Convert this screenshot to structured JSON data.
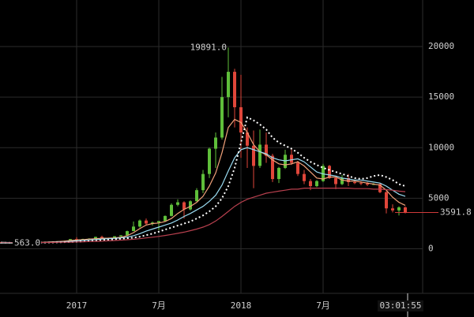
{
  "chart_data": {
    "type": "candlestick",
    "categories": [
      null,
      null,
      null,
      null,
      null,
      null,
      null,
      null,
      null,
      null,
      null,
      null,
      "2017",
      null,
      null,
      null,
      null,
      null,
      null,
      null,
      null,
      null,
      null,
      null,
      null,
      "7月",
      null,
      null,
      null,
      null,
      null,
      null,
      null,
      null,
      null,
      null,
      null,
      null,
      "2018",
      null,
      null,
      null,
      null,
      null,
      null,
      null,
      null,
      null,
      null,
      null,
      null,
      "7月",
      null,
      null,
      null,
      null,
      null,
      null,
      null,
      null,
      null,
      null,
      null,
      null,
      null
    ],
    "open": [
      660,
      655,
      575,
      590,
      600,
      610,
      630,
      640,
      700,
      720,
      750,
      790,
      960,
      900,
      980,
      1020,
      1180,
      1050,
      1060,
      1240,
      1340,
      1750,
      2200,
      2800,
      2500,
      2600,
      2750,
      3250,
      4350,
      4600,
      3900,
      4700,
      5800,
      7400,
      9900,
      11000,
      15000,
      17500,
      14000,
      11500,
      10200,
      8200,
      10300,
      9200,
      6900,
      8000,
      9300,
      8500,
      7400,
      6700,
      6200,
      6700,
      8200,
      7000,
      6400,
      7000,
      6600,
      6500,
      6450,
      6350,
      6400,
      5600,
      4000,
      3800,
      4100
    ],
    "high": [
      680,
      660,
      600,
      610,
      615,
      640,
      650,
      720,
      740,
      760,
      800,
      980,
      1150,
      1000,
      1050,
      1200,
      1300,
      1100,
      1250,
      1350,
      1800,
      2700,
      2900,
      3000,
      2700,
      2700,
      3300,
      4500,
      4900,
      4700,
      4800,
      6000,
      7800,
      10000,
      11500,
      17000,
      19891,
      17800,
      17200,
      12000,
      11700,
      11800,
      11500,
      9400,
      8100,
      9800,
      9900,
      8700,
      7800,
      6900,
      6800,
      8400,
      8300,
      7100,
      7300,
      7400,
      6800,
      6700,
      6600,
      6500,
      6500,
      5700,
      4400,
      4200,
      4200
    ],
    "low": [
      640,
      563,
      565,
      570,
      590,
      600,
      620,
      635,
      680,
      700,
      740,
      780,
      780,
      880,
      940,
      1000,
      950,
      900,
      1050,
      1200,
      1330,
      1750,
      2100,
      2300,
      2300,
      1850,
      2700,
      3200,
      4200,
      3000,
      3800,
      4700,
      5500,
      7000,
      8000,
      10800,
      13000,
      12000,
      9000,
      8000,
      6000,
      8000,
      8500,
      6600,
      6500,
      7900,
      8300,
      7200,
      6400,
      5800,
      6100,
      6600,
      6900,
      5900,
      6300,
      6200,
      6400,
      6300,
      6200,
      6300,
      5500,
      3500,
      3600,
      3300,
      3500
    ],
    "close": [
      655,
      575,
      590,
      600,
      610,
      630,
      640,
      700,
      720,
      750,
      790,
      960,
      900,
      980,
      1020,
      1180,
      1050,
      1060,
      1240,
      1340,
      1750,
      2200,
      2800,
      2500,
      2600,
      2750,
      3250,
      4350,
      4600,
      3900,
      4700,
      5800,
      7400,
      9900,
      11000,
      15000,
      17500,
      14000,
      11500,
      10200,
      8200,
      10300,
      9200,
      6900,
      8000,
      9300,
      8500,
      7400,
      6700,
      6200,
      6700,
      8200,
      7000,
      6400,
      7000,
      6600,
      6500,
      6450,
      6350,
      6400,
      5600,
      4000,
      3800,
      4100,
      3591.8
    ],
    "up_color": "#5fbf3a",
    "down_color": "#e0463a",
    "lines": [
      {
        "color": "#f2a27a",
        "dashed": false,
        "values": [
          650,
          620,
          600,
          595,
          600,
          615,
          630,
          660,
          690,
          720,
          750,
          820,
          880,
          920,
          960,
          1000,
          1050,
          1060,
          1080,
          1150,
          1300,
          1600,
          2000,
          2350,
          2500,
          2550,
          2700,
          3000,
          3500,
          3900,
          4200,
          4600,
          5200,
          6200,
          7500,
          9500,
          12000,
          12800,
          12500,
          11500,
          10300,
          9600,
          9300,
          8800,
          8400,
          8300,
          8400,
          8600,
          8200,
          7600,
          7000,
          6900,
          7100,
          7100,
          6800,
          6700,
          6700,
          6600,
          6500,
          6400,
          6300,
          5800,
          5100,
          4600,
          4300
        ]
      },
      {
        "color": "#9adcf2",
        "dashed": false,
        "values": [
          640,
          630,
          615,
          605,
          600,
          605,
          615,
          630,
          650,
          675,
          700,
          740,
          790,
          840,
          880,
          920,
          960,
          1000,
          1030,
          1080,
          1160,
          1300,
          1500,
          1750,
          1950,
          2150,
          2350,
          2550,
          2850,
          3200,
          3500,
          3850,
          4200,
          4700,
          5300,
          6300,
          7700,
          9000,
          9800,
          10000,
          9800,
          9600,
          9400,
          9000,
          8800,
          8700,
          8800,
          8900,
          8600,
          8100,
          7600,
          7400,
          7300,
          7200,
          7000,
          6900,
          6800,
          6800,
          6700,
          6600,
          6500,
          6200,
          5800,
          5400,
          5200
        ]
      },
      {
        "color": "#ffffff",
        "dashed": true,
        "values": [
          600,
          600,
          600,
          600,
          600,
          600,
          610,
          620,
          630,
          640,
          660,
          680,
          700,
          730,
          770,
          810,
          850,
          900,
          950,
          1000,
          1050,
          1100,
          1200,
          1350,
          1500,
          1700,
          1900,
          2100,
          2300,
          2500,
          2700,
          3000,
          3300,
          3700,
          4200,
          5000,
          6200,
          8000,
          10500,
          13000,
          12700,
          12300,
          11800,
          11000,
          10500,
          10200,
          9900,
          9500,
          9000,
          8600,
          8300,
          8000,
          7800,
          7600,
          7400,
          7200,
          7000,
          6900,
          7000,
          7200,
          7300,
          7100,
          6800,
          6400,
          6200
        ]
      },
      {
        "color": "#b8404e",
        "dashed": false,
        "values": [
          600,
          600,
          600,
          605,
          610,
          615,
          620,
          625,
          630,
          640,
          650,
          660,
          680,
          700,
          720,
          740,
          760,
          790,
          820,
          860,
          900,
          950,
          1000,
          1080,
          1150,
          1230,
          1320,
          1420,
          1530,
          1650,
          1800,
          1950,
          2150,
          2400,
          2750,
          3200,
          3700,
          4200,
          4600,
          4900,
          5100,
          5300,
          5500,
          5600,
          5700,
          5800,
          5900,
          5900,
          6000,
          6000,
          6000,
          6000,
          6000,
          6000,
          6000,
          6000,
          5950,
          5950,
          5950,
          5900,
          5900,
          5850,
          5800,
          5700,
          5650
        ]
      }
    ],
    "annotations": [
      {
        "value": 19891,
        "label": "19891.0"
      },
      {
        "value": 563,
        "label": "563.0"
      },
      {
        "value": 3591.8,
        "label": "3591.8"
      }
    ],
    "crosshair_time": "03:01:55",
    "ylim": [
      -4400,
      24600
    ],
    "yticks": [
      0,
      5000,
      10000,
      15000,
      20000
    ],
    "grid": true
  }
}
